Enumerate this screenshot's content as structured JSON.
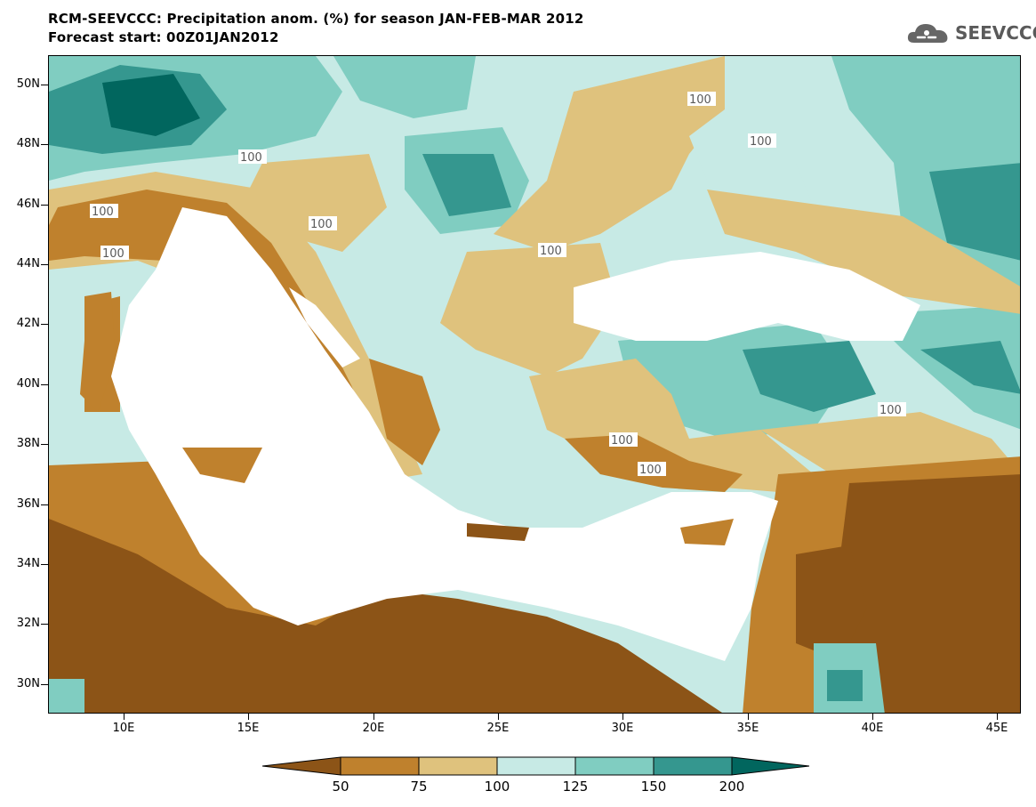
{
  "title_line1": "RCM-SEEVCCC: Precipitation anom. (%) for season JAN-FEB-MAR 2012",
  "title_line2": "Forecast start: 00Z01JAN2012",
  "logo_text": "SEEVCCC",
  "map": {
    "lon_range": [
      7,
      46
    ],
    "lat_range": [
      29,
      51
    ],
    "lat_ticks": [
      "50N",
      "48N",
      "46N",
      "44N",
      "42N",
      "40N",
      "38N",
      "36N",
      "34N",
      "32N",
      "30N"
    ],
    "lon_ticks": [
      "10E",
      "15E",
      "20E",
      "25E",
      "30E",
      "35E",
      "40E",
      "45E"
    ],
    "contour_label": "100"
  },
  "colorbar": {
    "labels": [
      "50",
      "75",
      "100",
      "125",
      "150",
      "200"
    ],
    "colors": [
      "#8c5417",
      "#bf812d",
      "#dfc27d",
      "#c7eae5",
      "#80cdc1",
      "#35978f",
      "#01665e"
    ]
  },
  "colors": {
    "sea": "#ffffff",
    "dry_extreme": "#8c5417",
    "dry": "#bf812d",
    "slightly_dry": "#dfc27d",
    "slightly_wet": "#c7eae5",
    "wet": "#80cdc1",
    "very_wet": "#35978f",
    "wet_extreme": "#01665e"
  }
}
